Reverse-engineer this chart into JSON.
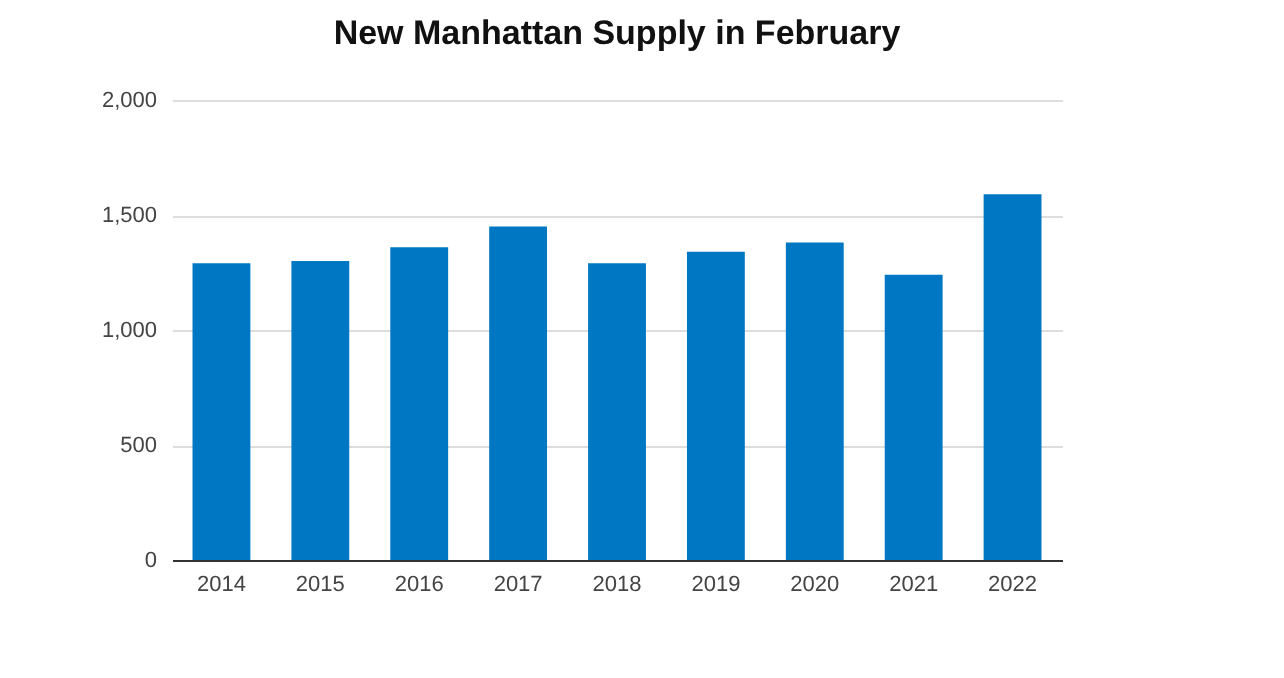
{
  "chart_data": {
    "type": "bar",
    "title": "New Manhattan Supply in February",
    "categories": [
      "2014",
      "2015",
      "2016",
      "2017",
      "2018",
      "2019",
      "2020",
      "2021",
      "2022"
    ],
    "values": [
      1290,
      1300,
      1360,
      1450,
      1290,
      1340,
      1380,
      1240,
      1590
    ],
    "color": "#0077c2",
    "ylim": [
      0,
      2000
    ],
    "yticks": [
      0,
      {
        "value": 500,
        "label": "500"
      },
      {
        "value": 1000,
        "label": "1,000"
      },
      {
        "value": 1500,
        "label": "1,500"
      },
      {
        "value": 2000,
        "label": "2,000"
      }
    ],
    "grid": "y"
  }
}
